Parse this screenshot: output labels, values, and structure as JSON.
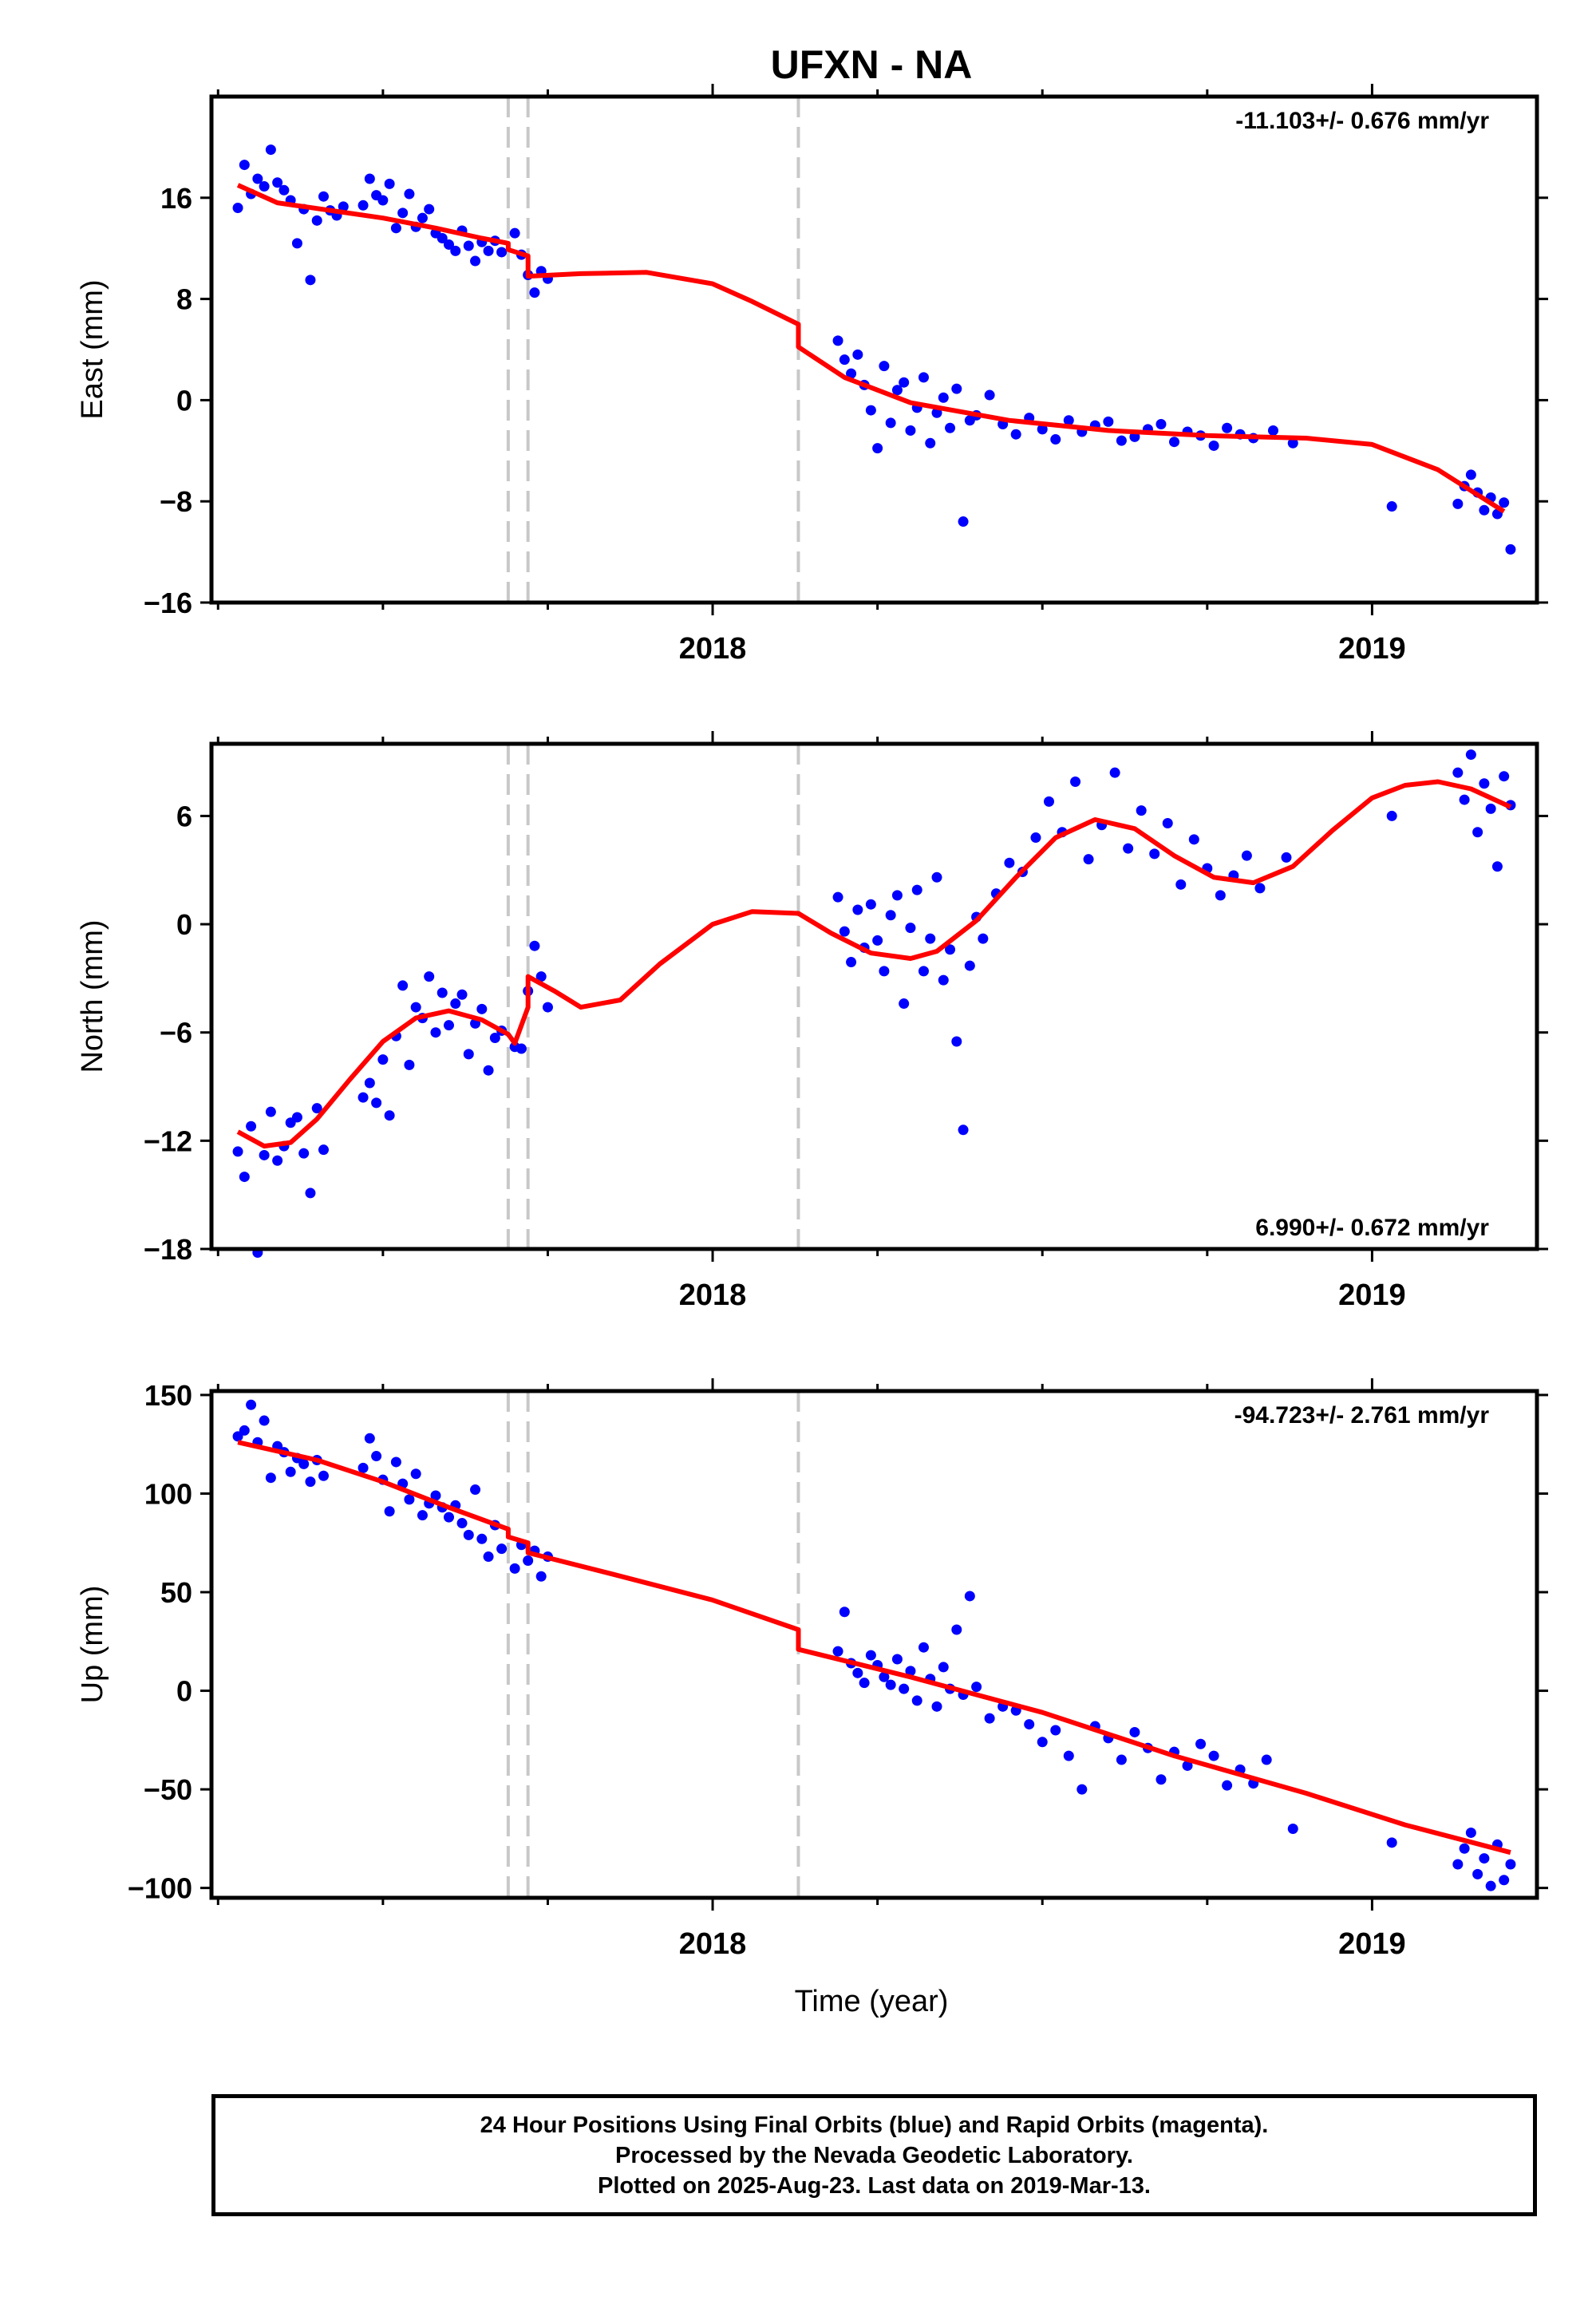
{
  "page_title": "UFXN - NA",
  "xlabel": "Time (year)",
  "footer": {
    "line1": "24 Hour Positions Using Final Orbits (blue) and Rapid Orbits (magenta).",
    "line2": "Processed by the Nevada Geodetic Laboratory.",
    "line3": "Plotted on 2025-Aug-23. Last data on 2019-Mar-13."
  },
  "colors": {
    "final_orbits": "#0000ff",
    "model": "#ff0000",
    "offset_lines": "#c8c8c8"
  },
  "chart_data": [
    {
      "type": "scatter",
      "component": "East",
      "ylabel": "East (mm)",
      "ylim": [
        -16,
        24
      ],
      "xlim": [
        2017.24,
        2019.25
      ],
      "yticks": [
        -16,
        -8,
        0,
        8,
        16
      ],
      "ytick_labels": [
        "−16",
        "−8",
        "0",
        "8",
        "16"
      ],
      "xticks": [
        2018,
        2019
      ],
      "xtick_labels": [
        "2018",
        "2019"
      ],
      "rate_label": "-11.103+/- 0.676 mm/yr",
      "rate_position": "top-right",
      "offsets": [
        2017.69,
        2017.72,
        2018.13
      ],
      "model": {
        "name": "",
        "x": [
          2017.28,
          2017.34,
          2017.42,
          2017.5,
          2017.58,
          2017.65,
          2017.69,
          2017.69,
          2017.72,
          2017.72,
          2017.8,
          2017.9,
          2018.0,
          2018.06,
          2018.13,
          2018.13,
          2018.2,
          2018.3,
          2018.45,
          2018.6,
          2018.75,
          2018.9,
          2019.0,
          2019.1,
          2019.2
        ],
        "y": [
          17.0,
          15.6,
          15.0,
          14.4,
          13.6,
          12.8,
          12.4,
          11.9,
          11.4,
          9.8,
          10.0,
          10.1,
          9.2,
          7.8,
          6.0,
          4.2,
          1.8,
          -0.2,
          -1.6,
          -2.4,
          -2.8,
          -3.0,
          -3.5,
          -5.5,
          -8.8
        ]
      },
      "series": [
        {
          "name": "",
          "x": [
            2017.28,
            2017.29,
            2017.3,
            2017.31,
            2017.32,
            2017.33,
            2017.34,
            2017.35,
            2017.36,
            2017.37,
            2017.38,
            2017.39,
            2017.4,
            2017.41,
            2017.42,
            2017.43,
            2017.44,
            2017.47,
            2017.48,
            2017.49,
            2017.5,
            2017.51,
            2017.52,
            2017.53,
            2017.54,
            2017.55,
            2017.56,
            2017.57,
            2017.58,
            2017.59,
            2017.6,
            2017.61,
            2017.62,
            2017.63,
            2017.64,
            2017.65,
            2017.66,
            2017.67,
            2017.68,
            2017.7,
            2017.71,
            2017.72,
            2017.73,
            2017.74,
            2017.75,
            2018.19,
            2018.2,
            2018.21,
            2018.22,
            2018.23,
            2018.24,
            2018.25,
            2018.26,
            2018.27,
            2018.28,
            2018.29,
            2018.3,
            2018.31,
            2018.32,
            2018.33,
            2018.34,
            2018.35,
            2018.36,
            2018.37,
            2018.38,
            2018.39,
            2018.4,
            2018.42,
            2018.44,
            2018.46,
            2018.48,
            2018.5,
            2018.52,
            2018.54,
            2018.56,
            2018.58,
            2018.6,
            2018.62,
            2018.64,
            2018.66,
            2018.68,
            2018.7,
            2018.72,
            2018.74,
            2018.76,
            2018.78,
            2018.8,
            2018.82,
            2018.85,
            2018.88,
            2019.03,
            2019.13,
            2019.14,
            2019.15,
            2019.16,
            2019.17,
            2019.18,
            2019.19,
            2019.2,
            2019.21
          ],
          "y": [
            15.2,
            18.6,
            16.3,
            17.5,
            16.9,
            19.8,
            17.2,
            16.6,
            15.8,
            12.4,
            15.1,
            9.5,
            14.2,
            16.1,
            15.0,
            14.6,
            15.3,
            15.4,
            17.5,
            16.2,
            15.8,
            17.1,
            13.6,
            14.8,
            16.3,
            13.7,
            14.4,
            15.1,
            13.2,
            12.8,
            12.3,
            11.8,
            13.4,
            12.2,
            11.0,
            12.5,
            11.8,
            12.6,
            11.7,
            13.2,
            11.5,
            9.9,
            8.5,
            10.2,
            9.6,
            4.7,
            3.2,
            2.1,
            3.6,
            1.2,
            -0.8,
            -3.8,
            2.7,
            -1.8,
            0.8,
            1.4,
            -2.4,
            -0.6,
            1.8,
            -3.4,
            -1.0,
            0.2,
            -2.2,
            0.9,
            -9.6,
            -1.6,
            -1.2,
            0.4,
            -1.9,
            -2.7,
            -1.4,
            -2.3,
            -3.1,
            -1.6,
            -2.5,
            -2.0,
            -1.7,
            -3.2,
            -2.9,
            -2.3,
            -1.9,
            -3.3,
            -2.5,
            -2.8,
            -3.6,
            -2.2,
            -2.7,
            -3.0,
            -2.4,
            -3.4,
            -8.4,
            -8.2,
            -6.8,
            -5.9,
            -7.3,
            -8.7,
            -7.7,
            -9.0,
            -8.1,
            -11.8
          ]
        }
      ]
    },
    {
      "type": "scatter",
      "component": "North",
      "ylabel": "North (mm)",
      "ylim": [
        -18,
        10
      ],
      "xlim": [
        2017.24,
        2019.25
      ],
      "yticks": [
        -18,
        -12,
        -6,
        0,
        6
      ],
      "ytick_labels": [
        "−18",
        "−12",
        "−6",
        "0",
        "6"
      ],
      "xticks": [
        2018,
        2019
      ],
      "xtick_labels": [
        "2018",
        "2019"
      ],
      "rate_label": "6.990+/- 0.672 mm/yr",
      "rate_position": "bottom-right",
      "offsets": [
        2017.69,
        2017.72,
        2018.13
      ],
      "model": {
        "name": "",
        "x": [
          2017.28,
          2017.32,
          2017.36,
          2017.4,
          2017.45,
          2017.5,
          2017.55,
          2017.6,
          2017.65,
          2017.69,
          2017.7,
          2017.72,
          2017.72,
          2017.76,
          2017.8,
          2017.86,
          2017.92,
          2018.0,
          2018.06,
          2018.13,
          2018.18,
          2018.24,
          2018.3,
          2018.34,
          2018.4,
          2018.46,
          2018.52,
          2018.58,
          2018.64,
          2018.7,
          2018.76,
          2018.82,
          2018.88,
          2018.94,
          2019.0,
          2019.05,
          2019.1,
          2019.15,
          2019.21
        ],
        "y": [
          -11.5,
          -12.3,
          -12.1,
          -10.8,
          -8.6,
          -6.5,
          -5.2,
          -4.8,
          -5.3,
          -6.1,
          -6.6,
          -4.6,
          -2.9,
          -3.7,
          -4.6,
          -4.2,
          -2.2,
          0.0,
          0.7,
          0.6,
          -0.5,
          -1.6,
          -1.9,
          -1.5,
          0.2,
          2.6,
          4.8,
          5.8,
          5.3,
          3.8,
          2.6,
          2.3,
          3.2,
          5.2,
          7.0,
          7.7,
          7.9,
          7.5,
          6.5
        ]
      },
      "series": [
        {
          "name": "",
          "x": [
            2017.28,
            2017.29,
            2017.3,
            2017.31,
            2017.32,
            2017.33,
            2017.34,
            2017.35,
            2017.36,
            2017.37,
            2017.38,
            2017.39,
            2017.4,
            2017.41,
            2017.47,
            2017.48,
            2017.49,
            2017.5,
            2017.51,
            2017.52,
            2017.53,
            2017.54,
            2017.55,
            2017.56,
            2017.57,
            2017.58,
            2017.59,
            2017.6,
            2017.61,
            2017.62,
            2017.63,
            2017.64,
            2017.65,
            2017.66,
            2017.67,
            2017.68,
            2017.7,
            2017.71,
            2017.72,
            2017.73,
            2017.74,
            2017.75,
            2018.19,
            2018.2,
            2018.21,
            2018.22,
            2018.23,
            2018.24,
            2018.25,
            2018.26,
            2018.27,
            2018.28,
            2018.29,
            2018.3,
            2018.31,
            2018.32,
            2018.33,
            2018.34,
            2018.35,
            2018.36,
            2018.37,
            2018.38,
            2018.39,
            2018.4,
            2018.41,
            2018.43,
            2018.45,
            2018.47,
            2018.49,
            2018.51,
            2018.53,
            2018.55,
            2018.57,
            2018.59,
            2018.61,
            2018.63,
            2018.65,
            2018.67,
            2018.69,
            2018.71,
            2018.73,
            2018.75,
            2018.77,
            2018.79,
            2018.81,
            2018.83,
            2018.87,
            2019.03,
            2019.13,
            2019.14,
            2019.15,
            2019.16,
            2019.17,
            2019.18,
            2019.19,
            2019.2,
            2019.21
          ],
          "y": [
            -12.6,
            -14.0,
            -11.2,
            -18.2,
            -12.8,
            -10.4,
            -13.1,
            -12.3,
            -11.0,
            -10.7,
            -12.7,
            -14.9,
            -10.2,
            -12.5,
            -9.6,
            -8.8,
            -9.9,
            -7.5,
            -10.6,
            -6.2,
            -3.4,
            -7.8,
            -4.6,
            -5.2,
            -2.9,
            -6.0,
            -3.8,
            -5.6,
            -4.4,
            -3.9,
            -7.2,
            -5.5,
            -4.7,
            -8.1,
            -6.3,
            -5.9,
            -6.8,
            -6.9,
            -3.7,
            -1.2,
            -2.9,
            -4.6,
            1.5,
            -0.4,
            -2.1,
            0.8,
            -1.3,
            1.1,
            -0.9,
            -2.6,
            0.5,
            1.6,
            -4.4,
            -0.2,
            1.9,
            -2.6,
            -0.8,
            2.6,
            -3.1,
            -1.4,
            -6.5,
            -11.4,
            -2.3,
            0.4,
            -0.8,
            1.7,
            3.4,
            2.9,
            4.8,
            6.8,
            5.1,
            7.9,
            3.6,
            5.5,
            8.4,
            4.2,
            6.3,
            3.9,
            5.6,
            2.2,
            4.7,
            3.1,
            1.6,
            2.7,
            3.8,
            2.0,
            3.7,
            6.0,
            8.4,
            6.9,
            9.4,
            5.1,
            7.8,
            6.4,
            3.2,
            8.2,
            6.6
          ]
        }
      ]
    },
    {
      "type": "scatter",
      "component": "Up",
      "ylabel": "Up (mm)",
      "ylim": [
        -105,
        152
      ],
      "xlim": [
        2017.24,
        2019.25
      ],
      "yticks": [
        -100,
        -50,
        0,
        50,
        100,
        150
      ],
      "ytick_labels": [
        "−100",
        "−50",
        "0",
        "50",
        "100",
        "150"
      ],
      "xticks": [
        2018,
        2019
      ],
      "xtick_labels": [
        "2018",
        "2019"
      ],
      "rate_label": "-94.723+/- 2.761 mm/yr",
      "rate_position": "top-right",
      "offsets": [
        2017.69,
        2017.72,
        2018.13
      ],
      "model": {
        "name": "",
        "x": [
          2017.28,
          2017.4,
          2017.5,
          2017.6,
          2017.69,
          2017.69,
          2017.72,
          2017.72,
          2017.85,
          2018.0,
          2018.13,
          2018.13,
          2018.3,
          2018.5,
          2018.7,
          2018.9,
          2019.05,
          2019.21
        ],
        "y": [
          126,
          117,
          106,
          93,
          82,
          78,
          75,
          70,
          59,
          46,
          31,
          21,
          7,
          -11,
          -33,
          -52,
          -68,
          -82
        ]
      },
      "series": [
        {
          "name": "",
          "x": [
            2017.28,
            2017.29,
            2017.3,
            2017.31,
            2017.32,
            2017.33,
            2017.34,
            2017.35,
            2017.36,
            2017.37,
            2017.38,
            2017.39,
            2017.4,
            2017.41,
            2017.47,
            2017.48,
            2017.49,
            2017.5,
            2017.51,
            2017.52,
            2017.53,
            2017.54,
            2017.55,
            2017.56,
            2017.57,
            2017.58,
            2017.59,
            2017.6,
            2017.61,
            2017.62,
            2017.63,
            2017.64,
            2017.65,
            2017.66,
            2017.67,
            2017.68,
            2017.7,
            2017.71,
            2017.72,
            2017.73,
            2017.74,
            2017.75,
            2018.19,
            2018.2,
            2018.21,
            2018.22,
            2018.23,
            2018.24,
            2018.25,
            2018.26,
            2018.27,
            2018.28,
            2018.29,
            2018.3,
            2018.31,
            2018.32,
            2018.33,
            2018.34,
            2018.35,
            2018.36,
            2018.37,
            2018.38,
            2018.39,
            2018.4,
            2018.42,
            2018.44,
            2018.46,
            2018.48,
            2018.5,
            2018.52,
            2018.54,
            2018.56,
            2018.58,
            2018.6,
            2018.62,
            2018.64,
            2018.66,
            2018.68,
            2018.7,
            2018.72,
            2018.74,
            2018.76,
            2018.78,
            2018.8,
            2018.82,
            2018.84,
            2018.88,
            2019.03,
            2019.13,
            2019.14,
            2019.15,
            2019.16,
            2019.17,
            2019.18,
            2019.19,
            2019.2,
            2019.21
          ],
          "y": [
            129,
            132,
            145,
            126,
            137,
            108,
            124,
            121,
            111,
            118,
            115,
            106,
            117,
            109,
            113,
            128,
            119,
            107,
            91,
            116,
            105,
            97,
            110,
            89,
            95,
            99,
            93,
            88,
            94,
            85,
            79,
            102,
            77,
            68,
            84,
            72,
            62,
            74,
            66,
            71,
            58,
            68,
            20,
            40,
            14,
            9,
            4,
            18,
            13,
            7,
            3,
            16,
            1,
            10,
            -5,
            22,
            6,
            -8,
            12,
            1,
            31,
            -2,
            48,
            2,
            -14,
            -8,
            -10,
            -17,
            -26,
            -20,
            -33,
            -50,
            -18,
            -24,
            -35,
            -21,
            -29,
            -45,
            -31,
            -38,
            -27,
            -33,
            -48,
            -40,
            -47,
            -35,
            -70,
            -77,
            -88,
            -80,
            -72,
            -93,
            -85,
            -99,
            -78,
            -96,
            -88
          ]
        }
      ]
    }
  ]
}
